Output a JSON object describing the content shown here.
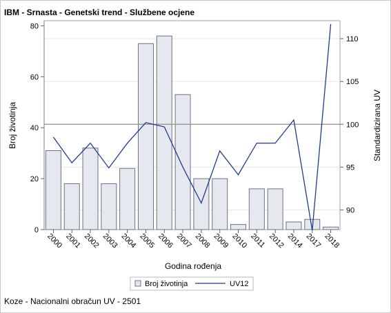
{
  "title": "IBM - Srnasta - Genetski trend - Službene ocjene",
  "footnote": "Koze - Nacionalni obračun UV - 2501",
  "chart_data": {
    "type": "bar+line",
    "categories": [
      "2000",
      "2001",
      "2002",
      "2003",
      "2004",
      "2005",
      "2006",
      "2007",
      "2008",
      "2009",
      "2010",
      "2011",
      "2012",
      "2014",
      "2017",
      "2018"
    ],
    "series": [
      {
        "name": "Broj životinja",
        "type": "bar",
        "axis": "left",
        "color": "#e6e8f0",
        "stroke": "#6e7080",
        "values": [
          31,
          18,
          32,
          18,
          24,
          73,
          76,
          53,
          20,
          20,
          2,
          16,
          16,
          3,
          4,
          1
        ]
      },
      {
        "name": "UV12",
        "type": "line",
        "axis": "right",
        "color": "#1f3a8a",
        "values": [
          98.5,
          95.5,
          97.8,
          94.9,
          97.8,
          100.2,
          99.7,
          95.0,
          90.8,
          96.9,
          94.1,
          97.8,
          97.8,
          100.5,
          87.6,
          111.7
        ]
      }
    ],
    "xlabel": "Godina rođenja",
    "ylabel": "Broj životinja",
    "y2label": "Standardizirana UV",
    "ylim": [
      0,
      82
    ],
    "yticks": [
      0,
      20,
      40,
      60,
      80
    ],
    "y2lim": [
      87.7,
      112.1
    ],
    "y2ticks": [
      90,
      95,
      100,
      105,
      110
    ],
    "reference_line_y2": 100,
    "grid": true,
    "legend": "bottom"
  }
}
